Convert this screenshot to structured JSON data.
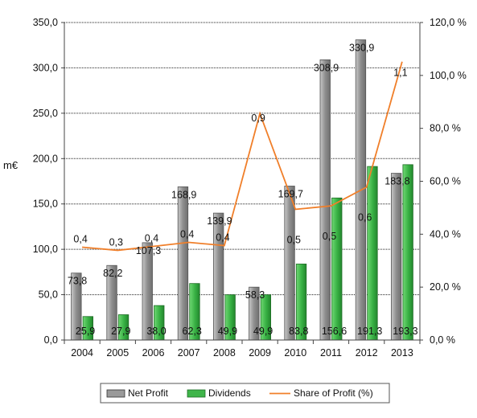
{
  "chart_data": {
    "type": "bar",
    "categories": [
      "2004",
      "2005",
      "2006",
      "2007",
      "2008",
      "2009",
      "2010",
      "2011",
      "2012",
      "2013"
    ],
    "series": [
      {
        "name": "Net Profit",
        "kind": "bar",
        "axis": "left",
        "color": "#9a9a9a",
        "values": [
          73.8,
          82.2,
          107.3,
          168.9,
          139.9,
          58.3,
          169.7,
          308.9,
          330.9,
          183.8
        ],
        "labels": [
          "73,8",
          "82,2",
          "107,3",
          "168,9",
          "139,9",
          "58,3",
          "169,7",
          "308,9",
          "330,9",
          "183,8"
        ]
      },
      {
        "name": "Dividends",
        "kind": "bar",
        "axis": "left",
        "color": "#3fb54a",
        "values": [
          25.9,
          27.9,
          38.0,
          62.3,
          49.9,
          49.9,
          83.8,
          156.6,
          191.3,
          193.3
        ],
        "labels": [
          "25,9",
          "27,9",
          "38,0",
          "62,3",
          "49,9",
          "49,9",
          "83,8",
          "156,6",
          "191,3",
          "193,3"
        ]
      },
      {
        "name": "Share of Profit (%)",
        "kind": "line",
        "axis": "right",
        "color": "#f07f2a",
        "values": [
          35.1,
          33.9,
          35.4,
          36.9,
          35.7,
          85.6,
          49.4,
          50.7,
          57.8,
          105.2
        ],
        "labels": [
          "0,4",
          "0,3",
          "0,4",
          "0,4",
          "0,4",
          "0,9",
          "0,5",
          "0,5",
          "0,6",
          "1,1"
        ]
      }
    ],
    "ylabel": "m€",
    "ylim": [
      0,
      350
    ],
    "yticks": [
      "0,0",
      "50,0",
      "100,0",
      "150,0",
      "200,0",
      "250,0",
      "300,0",
      "350,0"
    ],
    "y2lim": [
      0,
      120
    ],
    "y2ticks": [
      "0,0 %",
      "20,0 %",
      "40,0 %",
      "60,0 %",
      "80,0 %",
      "100,0 %",
      "120,0 %"
    ],
    "grid": true,
    "legend_position": "bottom"
  }
}
